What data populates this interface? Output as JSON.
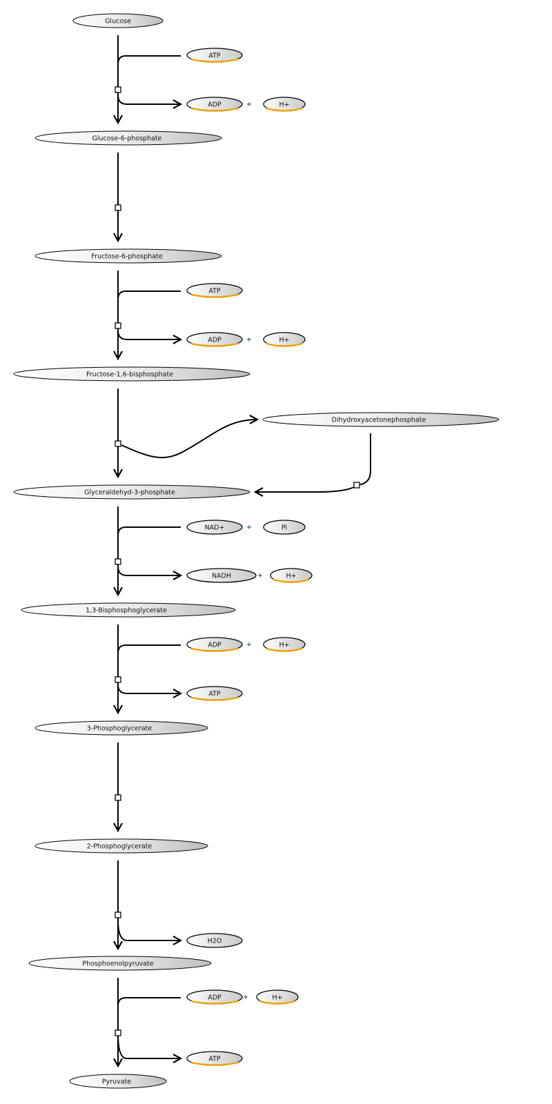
{
  "diagram": {
    "title": "",
    "metabolites": {
      "glucose": "Glucose",
      "g6p": "Glucose-6-phosphate",
      "f6p": "Fructose-6-phosphate",
      "fbp": "Fructose-1,6-bisphosphate",
      "dhap": "Dihydroxyacetonephosphate",
      "gap": "Glyceraldehyd-3-phosphate",
      "bpg": "1,3-Bisphosphoglycerate",
      "pg3": "3-Phosphoglycerate",
      "pg2": "2-Phosphoglycerate",
      "pep": "Phosphoenolpyruvate",
      "pyruvate": "Pyruvate"
    },
    "cofactors": {
      "atp": "ATP",
      "adp": "ADP",
      "h": "H+",
      "nad": "NAD+",
      "nadh": "NADH",
      "pi": "Pi",
      "h2o": "H2O",
      "plus": "+"
    },
    "colors": {
      "node_gradient_light": "#ffffff",
      "node_gradient_dark": "#bdbdbd",
      "highlight_orange": "#f0a000",
      "plus_sign": "#003366"
    }
  }
}
